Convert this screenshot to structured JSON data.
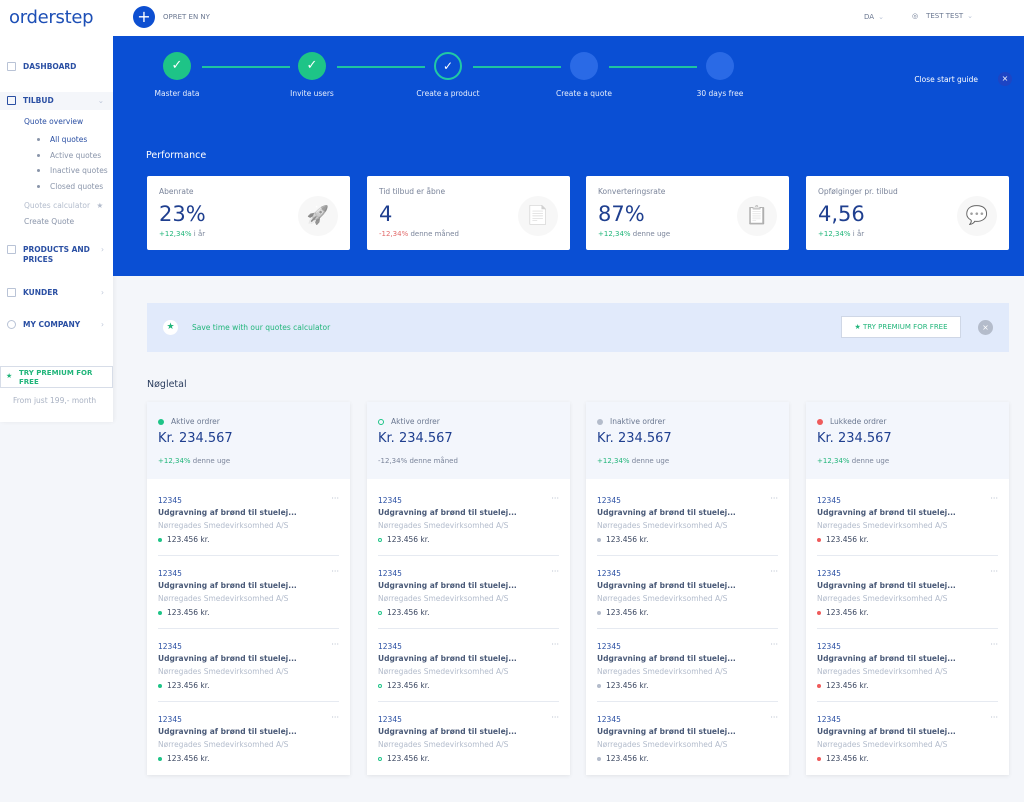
{
  "sidebar": {
    "logo": "orderstep",
    "dashboard": "DASHBOARD",
    "tilbud": "TILBUD",
    "quote_overview": "Quote overview",
    "quote_items": [
      "All quotes",
      "Active quotes",
      "Inactive quotes",
      "Closed quotes"
    ],
    "quotes_calculator": "Quotes calculator",
    "create_quote": "Create Quote",
    "products": "PRODUCTS AND PRICES",
    "kunder": "KUNDER",
    "company": "MY COMPANY",
    "premium": "TRY PREMIUM FOR FREE",
    "from": "From just 199,- month"
  },
  "header": {
    "create": "OPRET EN NY",
    "lang": "DA",
    "user": "TEST TEST"
  },
  "guide": {
    "steps": [
      {
        "label": "Master data",
        "state": "done"
      },
      {
        "label": "Invite users",
        "state": "done"
      },
      {
        "label": "Create a product",
        "state": "current"
      },
      {
        "label": "Create a quote",
        "state": "todo"
      },
      {
        "label": "30 days free",
        "state": "todo"
      }
    ],
    "close": "Close start guide"
  },
  "performance": {
    "title": "Performance",
    "kpis": [
      {
        "title": "Abenrate",
        "value": "23%",
        "delta": "+12,34%",
        "period": "i år",
        "trend": "pos",
        "icon": "rocket-laptop-icon"
      },
      {
        "title": "Tid tilbud er åbne",
        "value": "4",
        "delta": "-12,34%",
        "period": "denne måned",
        "trend": "neg",
        "icon": "document-clock-icon"
      },
      {
        "title": "Konverteringsrate",
        "value": "87%",
        "delta": "+12,34%",
        "period": "denne uge",
        "trend": "pos",
        "icon": "document-check-icon"
      },
      {
        "title": "Opfølginger pr. tilbud",
        "value": "4,56",
        "delta": "+12,34%",
        "period": "i år",
        "trend": "pos",
        "icon": "chat-refresh-icon"
      }
    ]
  },
  "banner": {
    "text": "Save time with our quotes calculator",
    "button": "TRY PREMIUM FOR FREE"
  },
  "nogletal": {
    "title": "Nøgletal",
    "cards": [
      {
        "label": "Aktive ordrer",
        "amount": "Kr. 234.567",
        "delta": "+12,34%",
        "period": "denne uge",
        "trend": "pos",
        "dot_color": "#1ec487",
        "dot_style": "filled"
      },
      {
        "label": "Aktive ordrer",
        "amount": "Kr. 234.567",
        "delta": "-12,34%",
        "period": "denne måned",
        "trend": "none",
        "dot_color": "#1ec487",
        "dot_style": "outline"
      },
      {
        "label": "Inaktive ordrer",
        "amount": "Kr. 234.567",
        "delta": "+12,34%",
        "period": "denne uge",
        "trend": "pos",
        "dot_color": "#b4bccb",
        "dot_style": "filled"
      },
      {
        "label": "Lukkede ordrer",
        "amount": "Kr. 234.567",
        "delta": "+12,34%",
        "period": "denne uge",
        "trend": "pos",
        "dot_color": "#ef5b5b",
        "dot_style": "filled"
      }
    ],
    "items": [
      {
        "id": "12345",
        "title": "Udgravning af brønd til stuelej...",
        "company": "Nørregades Smedevirksomhed A/S",
        "price": "123.456 kr."
      },
      {
        "id": "12345",
        "title": "Udgravning af brønd til stuelej...",
        "company": "Nørregades Smedevirksomhed A/S",
        "price": "123.456 kr."
      },
      {
        "id": "12345",
        "title": "Udgravning af brønd til stuelej...",
        "company": "Nørregades Smedevirksomhed A/S",
        "price": "123.456 kr."
      },
      {
        "id": "12345",
        "title": "Udgravning af brønd til stuelej...",
        "company": "Nørregades Smedevirksomhed A/S",
        "price": "123.456 kr."
      }
    ]
  }
}
